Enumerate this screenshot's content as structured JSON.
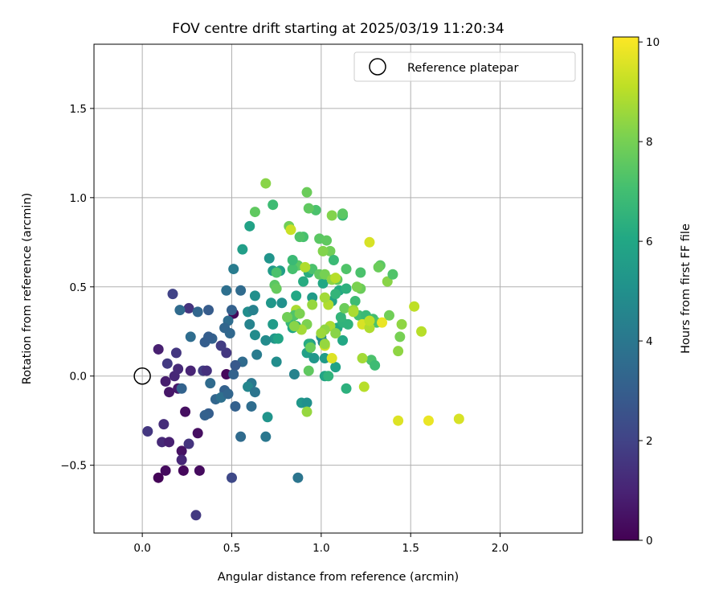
{
  "chart_data": {
    "type": "scatter",
    "title": "FOV centre drift starting at 2025/03/19 11:20:34",
    "xlabel": "Angular distance from reference (arcmin)",
    "ylabel": "Rotation from reference (arcmin)",
    "xlim": [
      -0.27,
      2.46
    ],
    "ylim": [
      -0.88,
      1.86
    ],
    "xticks": [
      0.0,
      0.5,
      1.0,
      1.5,
      2.0
    ],
    "xtick_labels": [
      "0.0",
      "0.5",
      "1.0",
      "1.5",
      "2.0"
    ],
    "yticks": [
      -0.5,
      0.0,
      0.5,
      1.0,
      1.5
    ],
    "ytick_labels": [
      "−0.5",
      "0.0",
      "0.5",
      "1.0",
      "1.5"
    ],
    "grid": true,
    "colormap": "viridis",
    "colorbar": {
      "label": "Hours from first FF file",
      "range": [
        0,
        10.1
      ],
      "ticks": [
        0,
        2,
        4,
        6,
        8,
        10
      ],
      "tick_labels": [
        "0",
        "2",
        "4",
        "6",
        "8",
        "10"
      ]
    },
    "legend": {
      "position": "upper right",
      "entries": [
        {
          "label": "Reference platepar",
          "marker": "open-circle"
        }
      ]
    },
    "reference_point": {
      "x": 0.0,
      "y": 0.0
    },
    "points": [
      [
        0.09,
        -0.57,
        0.1
      ],
      [
        0.13,
        -0.53,
        0.3
      ],
      [
        0.23,
        -0.53,
        0.2
      ],
      [
        0.32,
        -0.53,
        0.3
      ],
      [
        0.31,
        -0.32,
        0.4
      ],
      [
        0.22,
        -0.42,
        0.5
      ],
      [
        0.24,
        -0.2,
        0.4
      ],
      [
        0.15,
        -0.09,
        0.6
      ],
      [
        0.2,
        -0.07,
        0.7
      ],
      [
        0.13,
        -0.03,
        0.8
      ],
      [
        0.09,
        0.15,
        0.9
      ],
      [
        0.18,
        0.0,
        1.1
      ],
      [
        0.27,
        0.03,
        1.0
      ],
      [
        0.2,
        0.04,
        1.2
      ],
      [
        0.22,
        -0.47,
        1.1
      ],
      [
        0.11,
        -0.37,
        1.2
      ],
      [
        0.15,
        -0.37,
        0.9
      ],
      [
        0.12,
        -0.27,
        1.3
      ],
      [
        0.26,
        -0.38,
        1.5
      ],
      [
        0.03,
        -0.31,
        1.6
      ],
      [
        0.19,
        0.13,
        1.6
      ],
      [
        0.14,
        0.07,
        1.7
      ],
      [
        0.34,
        0.03,
        1.8
      ],
      [
        0.36,
        0.03,
        1.4
      ],
      [
        0.47,
        0.13,
        1.6
      ],
      [
        0.44,
        0.17,
        1.8
      ],
      [
        0.26,
        0.38,
        1.5
      ],
      [
        0.17,
        0.46,
        2.0
      ],
      [
        0.3,
        -0.78,
        1.7
      ],
      [
        0.5,
        -0.57,
        2.2
      ],
      [
        0.47,
        0.01,
        0.2
      ],
      [
        0.51,
        0.35,
        0.2
      ],
      [
        0.21,
        0.37,
        3.5
      ],
      [
        0.31,
        0.36,
        3.3
      ],
      [
        0.37,
        0.37,
        2.9
      ],
      [
        0.27,
        0.22,
        3.6
      ],
      [
        0.35,
        0.19,
        3.0
      ],
      [
        0.39,
        0.21,
        3.1
      ],
      [
        0.37,
        0.22,
        3.0
      ],
      [
        0.46,
        -0.08,
        3.1
      ],
      [
        0.41,
        -0.13,
        3.3
      ],
      [
        0.37,
        -0.21,
        3.0
      ],
      [
        0.35,
        -0.22,
        3.1
      ],
      [
        0.44,
        -0.12,
        3.7
      ],
      [
        0.48,
        -0.1,
        3.3
      ],
      [
        0.52,
        -0.17,
        3.1
      ],
      [
        0.55,
        -0.34,
        3.5
      ],
      [
        0.22,
        -0.07,
        3.2
      ],
      [
        0.38,
        -0.04,
        3.5
      ],
      [
        0.51,
        0.01,
        3.2
      ],
      [
        0.56,
        0.08,
        3.5
      ],
      [
        0.52,
        0.06,
        2.8
      ],
      [
        0.49,
        0.24,
        3.4
      ],
      [
        0.5,
        0.37,
        3.1
      ],
      [
        0.48,
        0.31,
        3.6
      ],
      [
        0.46,
        0.27,
        3.3
      ],
      [
        0.47,
        0.48,
        3.7
      ],
      [
        0.55,
        0.48,
        3.5
      ],
      [
        0.51,
        0.6,
        4.2
      ],
      [
        0.6,
        0.29,
        4.5
      ],
      [
        0.63,
        0.23,
        4.8
      ],
      [
        0.64,
        0.12,
        4.2
      ],
      [
        0.61,
        -0.04,
        4.0
      ],
      [
        0.59,
        -0.06,
        4.6
      ],
      [
        0.63,
        -0.09,
        3.9
      ],
      [
        0.61,
        -0.17,
        3.6
      ],
      [
        0.69,
        -0.34,
        4.0
      ],
      [
        0.7,
        -0.23,
        5.2
      ],
      [
        0.59,
        0.36,
        4.9
      ],
      [
        0.63,
        0.45,
        5.0
      ],
      [
        0.62,
        0.37,
        4.4
      ],
      [
        0.56,
        0.71,
        5.6
      ],
      [
        0.6,
        0.84,
        5.8
      ],
      [
        0.71,
        0.66,
        5.2
      ],
      [
        0.73,
        0.59,
        5.5
      ],
      [
        0.77,
        0.59,
        5.6
      ],
      [
        0.72,
        0.41,
        5.3
      ],
      [
        0.78,
        0.41,
        5.0
      ],
      [
        0.75,
        0.08,
        4.9
      ],
      [
        0.74,
        0.21,
        5.3
      ],
      [
        0.69,
        0.2,
        4.8
      ],
      [
        0.73,
        0.29,
        5.5
      ],
      [
        0.76,
        0.21,
        5.9
      ],
      [
        0.84,
        0.27,
        6.0
      ],
      [
        0.85,
        0.01,
        4.5
      ],
      [
        0.87,
        -0.57,
        3.9
      ],
      [
        0.89,
        -0.15,
        5.3
      ],
      [
        0.92,
        -0.15,
        5.0
      ],
      [
        0.92,
        0.13,
        5.7
      ],
      [
        0.94,
        0.18,
        5.4
      ],
      [
        0.96,
        0.1,
        5.3
      ],
      [
        0.93,
        0.18,
        6.2
      ],
      [
        1.0,
        0.22,
        5.0
      ],
      [
        1.01,
        0.19,
        4.7
      ],
      [
        1.02,
        0.1,
        5.5
      ],
      [
        1.02,
        0.0,
        5.9
      ],
      [
        1.08,
        0.05,
        5.8
      ],
      [
        1.04,
        0.0,
        6.5
      ],
      [
        1.09,
        0.27,
        6.1
      ],
      [
        1.12,
        0.2,
        6.0
      ],
      [
        1.14,
        -0.07,
        6.4
      ],
      [
        1.12,
        0.3,
        6.5
      ],
      [
        1.15,
        0.29,
        6.5
      ],
      [
        1.01,
        0.52,
        6.0
      ],
      [
        1.06,
        0.42,
        5.9
      ],
      [
        1.1,
        0.48,
        6.1
      ],
      [
        1.08,
        0.46,
        6.6
      ],
      [
        1.11,
        0.33,
        6.6
      ],
      [
        1.14,
        0.49,
        6.4
      ],
      [
        1.19,
        0.42,
        6.9
      ],
      [
        1.21,
        0.34,
        7.0
      ],
      [
        0.95,
        0.44,
        5.5
      ],
      [
        0.9,
        0.53,
        6.2
      ],
      [
        0.93,
        0.58,
        6.3
      ],
      [
        0.86,
        0.45,
        6.0
      ],
      [
        0.83,
        0.3,
        6.7
      ],
      [
        0.86,
        0.28,
        6.2
      ],
      [
        0.9,
        0.78,
        7.1
      ],
      [
        0.88,
        0.78,
        7.3
      ],
      [
        0.99,
        0.77,
        7.5
      ],
      [
        0.97,
        0.93,
        7.2
      ],
      [
        1.03,
        0.76,
        7.6
      ],
      [
        1.05,
        0.7,
        7.9
      ],
      [
        1.07,
        0.65,
        6.8
      ],
      [
        1.09,
        0.54,
        7.6
      ],
      [
        1.12,
        0.9,
        6.9
      ],
      [
        1.12,
        0.91,
        7.5
      ],
      [
        1.06,
        0.9,
        8.2
      ],
      [
        0.92,
        1.03,
        7.8
      ],
      [
        0.93,
        0.94,
        7.6
      ],
      [
        0.87,
        0.62,
        7.5
      ],
      [
        0.84,
        0.6,
        7.1
      ],
      [
        0.75,
        0.58,
        7.2
      ],
      [
        0.74,
        0.51,
        7.5
      ],
      [
        0.75,
        0.49,
        7.7
      ],
      [
        0.82,
        0.84,
        7.9
      ],
      [
        0.73,
        0.96,
        6.9
      ],
      [
        0.63,
        0.92,
        7.6
      ],
      [
        0.69,
        1.08,
        8.3
      ],
      [
        0.84,
        0.65,
        6.8
      ],
      [
        0.95,
        0.6,
        7.2
      ],
      [
        0.99,
        0.57,
        7.6
      ],
      [
        1.02,
        0.57,
        8.0
      ],
      [
        1.06,
        0.54,
        8.4
      ],
      [
        1.14,
        0.6,
        7.3
      ],
      [
        1.22,
        0.58,
        7.2
      ],
      [
        1.22,
        0.49,
        7.8
      ],
      [
        1.2,
        0.5,
        8.1
      ],
      [
        1.13,
        0.38,
        7.8
      ],
      [
        1.18,
        0.37,
        8.5
      ],
      [
        1.29,
        0.32,
        7.0
      ],
      [
        1.31,
        0.3,
        7.2
      ],
      [
        1.38,
        0.34,
        7.9
      ],
      [
        1.25,
        0.34,
        6.8
      ],
      [
        1.28,
        0.09,
        7.2
      ],
      [
        1.3,
        0.06,
        6.9
      ],
      [
        1.23,
        0.1,
        8.7
      ],
      [
        1.24,
        -0.06,
        9.0
      ],
      [
        1.33,
        0.62,
        7.5
      ],
      [
        1.32,
        0.61,
        7.8
      ],
      [
        1.37,
        0.53,
        8.3
      ],
      [
        1.4,
        0.57,
        7.3
      ],
      [
        1.44,
        0.22,
        8.0
      ],
      [
        1.43,
        0.14,
        8.4
      ],
      [
        1.45,
        0.29,
        8.4
      ],
      [
        1.52,
        0.39,
        9.1
      ],
      [
        1.56,
        0.25,
        9.0
      ],
      [
        1.43,
        -0.25,
        9.6
      ],
      [
        1.6,
        -0.25,
        9.8
      ],
      [
        1.77,
        -0.24,
        9.5
      ],
      [
        1.27,
        0.75,
        9.5
      ],
      [
        1.34,
        0.3,
        9.8
      ],
      [
        1.23,
        0.29,
        9.5
      ],
      [
        1.27,
        0.27,
        8.9
      ],
      [
        1.27,
        0.31,
        9.1
      ],
      [
        1.18,
        0.36,
        8.8
      ],
      [
        1.04,
        0.4,
        8.9
      ],
      [
        1.05,
        0.28,
        8.8
      ],
      [
        1.02,
        0.26,
        8.4
      ],
      [
        1.0,
        0.24,
        8.6
      ],
      [
        1.02,
        0.17,
        9.4
      ],
      [
        1.02,
        0.18,
        8.5
      ],
      [
        1.06,
        0.1,
        9.6
      ],
      [
        1.08,
        0.24,
        8.3
      ],
      [
        1.08,
        0.55,
        9.0
      ],
      [
        1.02,
        0.44,
        8.7
      ],
      [
        1.01,
        0.7,
        8.2
      ],
      [
        0.95,
        0.4,
        8.5
      ],
      [
        0.92,
        0.29,
        8.1
      ],
      [
        0.89,
        0.26,
        8.7
      ],
      [
        0.86,
        0.37,
        8.8
      ],
      [
        0.83,
        0.82,
        9.3
      ],
      [
        0.85,
        0.34,
        7.3
      ],
      [
        0.81,
        0.33,
        7.9
      ],
      [
        0.85,
        0.28,
        8.3
      ],
      [
        0.91,
        0.61,
        8.9
      ],
      [
        0.94,
        0.16,
        7.8
      ],
      [
        0.92,
        -0.2,
        8.5
      ],
      [
        0.93,
        0.03,
        7.6
      ],
      [
        0.88,
        0.35,
        8.1
      ]
    ]
  }
}
